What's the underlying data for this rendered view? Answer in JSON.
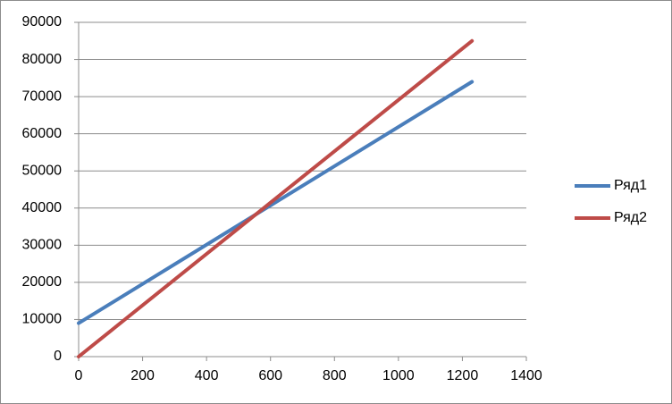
{
  "chart_data": {
    "type": "line",
    "title": "",
    "xlabel": "",
    "ylabel": "",
    "xlim": [
      0,
      1400
    ],
    "ylim": [
      0,
      90000
    ],
    "x_ticks": [
      "0",
      "200",
      "400",
      "600",
      "800",
      "1000",
      "1200",
      "1400"
    ],
    "y_ticks": [
      "0",
      "10000",
      "20000",
      "30000",
      "40000",
      "50000",
      "60000",
      "70000",
      "80000",
      "90000"
    ],
    "grid": "horizontal",
    "legend_position": "right",
    "series": [
      {
        "name": "Ряд1",
        "color": "#4a7ebb",
        "points": [
          [
            0,
            9000
          ],
          [
            1230,
            74000
          ]
        ]
      },
      {
        "name": "Ряд2",
        "color": "#be4b48",
        "points": [
          [
            0,
            0
          ],
          [
            1230,
            85000
          ]
        ]
      }
    ]
  }
}
